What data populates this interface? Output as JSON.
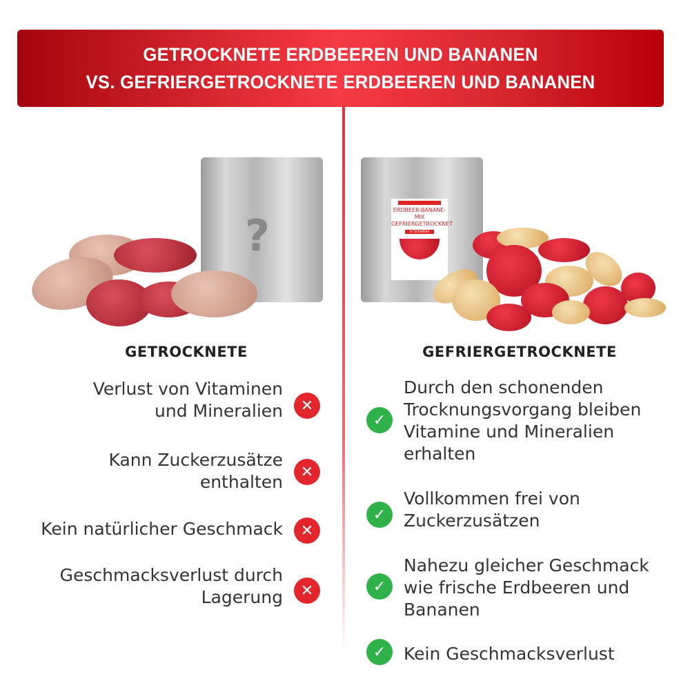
{
  "banner": {
    "line1": "GETROCKNETE ERDBEEREN UND BANANEN",
    "line2": "VS. GEFRIERGETROCKNETE ERDBEEREN UND BANANEN"
  },
  "accent_color": "#d8262f",
  "left": {
    "heading": "GETROCKNETE",
    "bag_mark": "?",
    "icon": "x-circle-icon",
    "items": [
      "Verlust von Vitaminen und Mineralien",
      "Kann Zuckerzusätze enthalten",
      "Kein natürlicher Geschmack",
      "Geschmacksverlust durch Lagerung"
    ]
  },
  "right": {
    "heading": "GEFRIERGETROCKNETE",
    "product_label": {
      "title": "ERDBEER-BANANE-MIX GEFRIERGETROCKNET",
      "subtitle": "in Scheiben"
    },
    "icon": "check-circle-icon",
    "items": [
      "Durch den schonenden Trocknungsvorgang bleiben Vitamine und Mineralien erhalten",
      "Vollkommen frei von Zuckerzusätzen",
      "Nahezu gleicher Geschmack wie frische Erdbeeren und Bananen",
      "Kein Geschmacksverlust"
    ]
  }
}
